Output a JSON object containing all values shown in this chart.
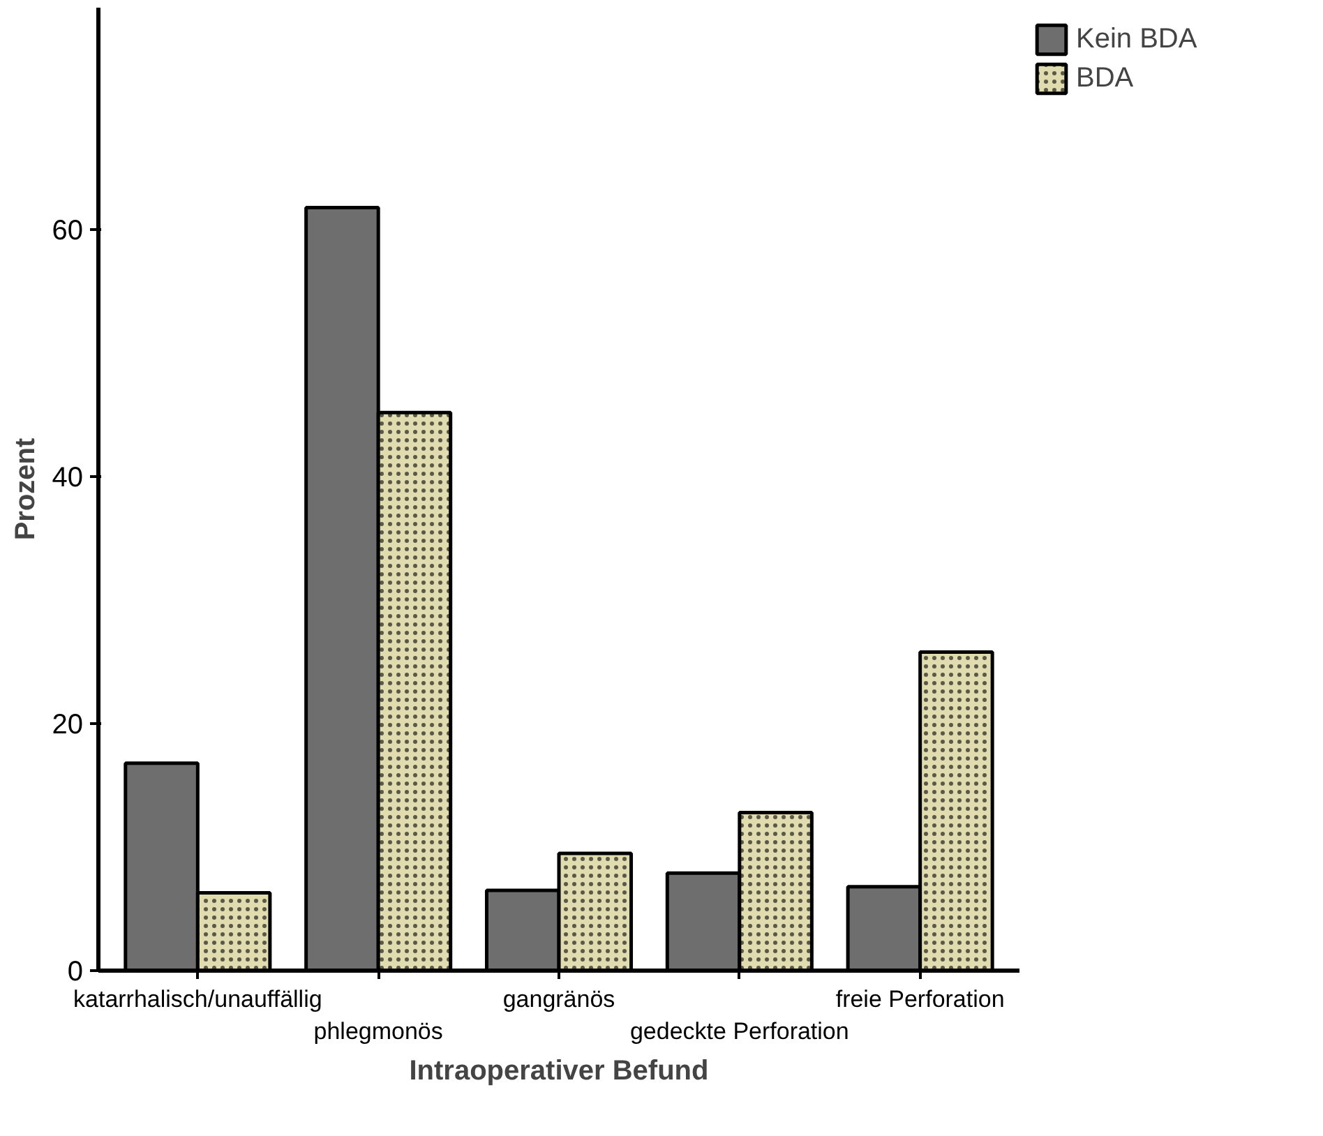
{
  "chart_data": {
    "type": "bar",
    "xlabel": "Intraoperativer Befund",
    "ylabel": "Prozent",
    "categories": [
      "katarrhalisch/unauffällig",
      "phlegmonös",
      "gangränös",
      "gedeckte Perforation",
      "freie Perforation"
    ],
    "series": [
      {
        "name": "Kein BDA",
        "color": "#6e6e6e",
        "values": [
          16.8,
          61.8,
          6.5,
          7.9,
          6.8
        ]
      },
      {
        "name": "BDA",
        "color": "#e0dcb0",
        "values": [
          6.3,
          45.2,
          9.5,
          12.8,
          25.8
        ]
      }
    ],
    "ylim": [
      0,
      78
    ],
    "yticks": [
      0,
      20,
      40,
      60
    ],
    "grid": false,
    "legend": "top right"
  }
}
